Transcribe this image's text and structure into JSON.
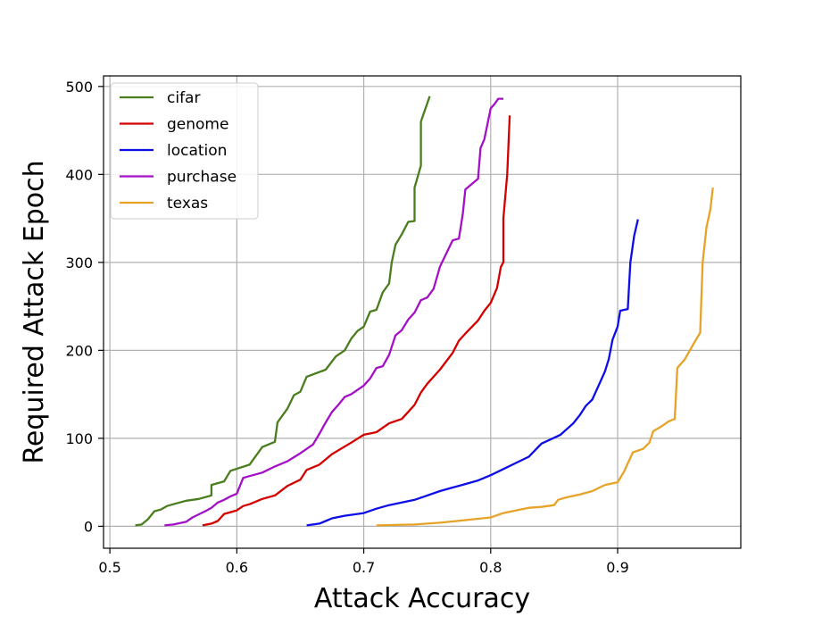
{
  "chart_data": {
    "type": "line",
    "title": "",
    "xlabel": "Attack Accuracy",
    "ylabel": "Required Attack Epoch",
    "xlim": [
      0.495,
      0.997
    ],
    "ylim": [
      -25,
      512
    ],
    "xticks": [
      0.5,
      0.6,
      0.7,
      0.8,
      0.9
    ],
    "xtick_labels": [
      "0.5",
      "0.6",
      "0.7",
      "0.8",
      "0.9"
    ],
    "yticks": [
      0,
      100,
      200,
      300,
      400,
      500
    ],
    "ytick_labels": [
      "0",
      "100",
      "200",
      "300",
      "400",
      "500"
    ],
    "grid": true,
    "legend_position": "top-left",
    "series": [
      {
        "name": "cifar",
        "color": "#4a7d1e",
        "points": [
          [
            0.52,
            1
          ],
          [
            0.525,
            2
          ],
          [
            0.53,
            8
          ],
          [
            0.535,
            17
          ],
          [
            0.54,
            19
          ],
          [
            0.545,
            23
          ],
          [
            0.55,
            25
          ],
          [
            0.56,
            29
          ],
          [
            0.57,
            31
          ],
          [
            0.58,
            35
          ],
          [
            0.58,
            47
          ],
          [
            0.59,
            51
          ],
          [
            0.595,
            63
          ],
          [
            0.61,
            70
          ],
          [
            0.615,
            80
          ],
          [
            0.62,
            90
          ],
          [
            0.63,
            96
          ],
          [
            0.632,
            118
          ],
          [
            0.64,
            134
          ],
          [
            0.645,
            149
          ],
          [
            0.65,
            153
          ],
          [
            0.655,
            170
          ],
          [
            0.67,
            178
          ],
          [
            0.678,
            193
          ],
          [
            0.685,
            200
          ],
          [
            0.69,
            213
          ],
          [
            0.695,
            222
          ],
          [
            0.7,
            227
          ],
          [
            0.705,
            244
          ],
          [
            0.71,
            246
          ],
          [
            0.715,
            266
          ],
          [
            0.72,
            276
          ],
          [
            0.722,
            300
          ],
          [
            0.725,
            320
          ],
          [
            0.73,
            332
          ],
          [
            0.735,
            346
          ],
          [
            0.74,
            347
          ],
          [
            0.74,
            385
          ],
          [
            0.745,
            410
          ],
          [
            0.745,
            460
          ],
          [
            0.752,
            489
          ]
        ]
      },
      {
        "name": "genome",
        "color": "#d40000",
        "points": [
          [
            0.573,
            1
          ],
          [
            0.58,
            3
          ],
          [
            0.585,
            6
          ],
          [
            0.59,
            14
          ],
          [
            0.6,
            18
          ],
          [
            0.605,
            23
          ],
          [
            0.61,
            25
          ],
          [
            0.62,
            31
          ],
          [
            0.63,
            35
          ],
          [
            0.64,
            46
          ],
          [
            0.65,
            53
          ],
          [
            0.655,
            64
          ],
          [
            0.665,
            70
          ],
          [
            0.675,
            82
          ],
          [
            0.69,
            95
          ],
          [
            0.7,
            104
          ],
          [
            0.71,
            107
          ],
          [
            0.72,
            117
          ],
          [
            0.73,
            122
          ],
          [
            0.735,
            130
          ],
          [
            0.74,
            138
          ],
          [
            0.745,
            152
          ],
          [
            0.75,
            162
          ],
          [
            0.76,
            178
          ],
          [
            0.77,
            197
          ],
          [
            0.775,
            211
          ],
          [
            0.78,
            219
          ],
          [
            0.79,
            234
          ],
          [
            0.795,
            245
          ],
          [
            0.8,
            254
          ],
          [
            0.805,
            271
          ],
          [
            0.808,
            295
          ],
          [
            0.81,
            300
          ],
          [
            0.81,
            350
          ],
          [
            0.813,
            400
          ],
          [
            0.815,
            467
          ]
        ]
      },
      {
        "name": "location",
        "color": "#0d0de8",
        "points": [
          [
            0.655,
            1
          ],
          [
            0.665,
            3
          ],
          [
            0.67,
            6
          ],
          [
            0.675,
            9
          ],
          [
            0.685,
            12
          ],
          [
            0.7,
            15
          ],
          [
            0.71,
            20
          ],
          [
            0.72,
            24
          ],
          [
            0.74,
            30
          ],
          [
            0.75,
            35
          ],
          [
            0.76,
            40
          ],
          [
            0.77,
            44
          ],
          [
            0.78,
            48
          ],
          [
            0.79,
            52
          ],
          [
            0.8,
            58
          ],
          [
            0.81,
            65
          ],
          [
            0.82,
            72
          ],
          [
            0.83,
            79
          ],
          [
            0.84,
            94
          ],
          [
            0.855,
            104
          ],
          [
            0.865,
            117
          ],
          [
            0.87,
            126
          ],
          [
            0.875,
            137
          ],
          [
            0.88,
            144
          ],
          [
            0.885,
            160
          ],
          [
            0.89,
            176
          ],
          [
            0.893,
            190
          ],
          [
            0.896,
            212
          ],
          [
            0.9,
            227
          ],
          [
            0.902,
            245
          ],
          [
            0.908,
            247
          ],
          [
            0.91,
            300
          ],
          [
            0.913,
            330
          ],
          [
            0.916,
            349
          ]
        ]
      },
      {
        "name": "purchase",
        "color": "#a310c6",
        "points": [
          [
            0.543,
            1
          ],
          [
            0.55,
            2
          ],
          [
            0.56,
            5
          ],
          [
            0.565,
            10
          ],
          [
            0.575,
            17
          ],
          [
            0.58,
            21
          ],
          [
            0.585,
            27
          ],
          [
            0.59,
            30
          ],
          [
            0.595,
            34
          ],
          [
            0.6,
            37
          ],
          [
            0.605,
            55
          ],
          [
            0.61,
            57
          ],
          [
            0.62,
            61
          ],
          [
            0.63,
            68
          ],
          [
            0.64,
            74
          ],
          [
            0.65,
            83
          ],
          [
            0.66,
            93
          ],
          [
            0.665,
            105
          ],
          [
            0.67,
            118
          ],
          [
            0.675,
            130
          ],
          [
            0.68,
            138
          ],
          [
            0.685,
            147
          ],
          [
            0.69,
            150
          ],
          [
            0.695,
            155
          ],
          [
            0.7,
            160
          ],
          [
            0.705,
            168
          ],
          [
            0.71,
            180
          ],
          [
            0.715,
            182
          ],
          [
            0.72,
            195
          ],
          [
            0.725,
            217
          ],
          [
            0.73,
            223
          ],
          [
            0.735,
            235
          ],
          [
            0.74,
            243
          ],
          [
            0.745,
            257
          ],
          [
            0.75,
            260
          ],
          [
            0.755,
            270
          ],
          [
            0.76,
            295
          ],
          [
            0.765,
            310
          ],
          [
            0.77,
            325
          ],
          [
            0.775,
            327
          ],
          [
            0.778,
            355
          ],
          [
            0.78,
            383
          ],
          [
            0.79,
            395
          ],
          [
            0.792,
            430
          ],
          [
            0.795,
            440
          ],
          [
            0.8,
            475
          ],
          [
            0.803,
            480
          ],
          [
            0.806,
            486
          ],
          [
            0.81,
            486
          ]
        ]
      },
      {
        "name": "texas",
        "color": "#e6a328",
        "points": [
          [
            0.71,
            1
          ],
          [
            0.74,
            2
          ],
          [
            0.76,
            4
          ],
          [
            0.78,
            7
          ],
          [
            0.8,
            10
          ],
          [
            0.81,
            15
          ],
          [
            0.82,
            18
          ],
          [
            0.83,
            21
          ],
          [
            0.84,
            22
          ],
          [
            0.85,
            24
          ],
          [
            0.853,
            30
          ],
          [
            0.86,
            33
          ],
          [
            0.87,
            36
          ],
          [
            0.88,
            40
          ],
          [
            0.89,
            47
          ],
          [
            0.9,
            50
          ],
          [
            0.905,
            62
          ],
          [
            0.912,
            84
          ],
          [
            0.92,
            88
          ],
          [
            0.925,
            95
          ],
          [
            0.928,
            108
          ],
          [
            0.935,
            114
          ],
          [
            0.94,
            119
          ],
          [
            0.945,
            122
          ],
          [
            0.947,
            180
          ],
          [
            0.953,
            190
          ],
          [
            0.96,
            208
          ],
          [
            0.965,
            220
          ],
          [
            0.967,
            300
          ],
          [
            0.97,
            340
          ],
          [
            0.973,
            360
          ],
          [
            0.975,
            385
          ]
        ]
      }
    ]
  }
}
